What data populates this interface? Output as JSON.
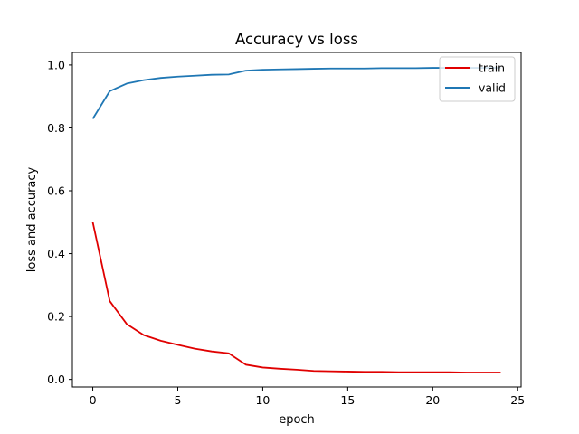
{
  "chart_data": {
    "type": "line",
    "title": "Accuracy vs loss",
    "xlabel": "epoch",
    "ylabel": "loss and accuracy",
    "xlim": [
      -1.2,
      25.2
    ],
    "ylim": [
      -0.024,
      1.04
    ],
    "xticks": [
      0,
      5,
      10,
      15,
      20,
      25
    ],
    "yticks": [
      0.0,
      0.2,
      0.4,
      0.6,
      0.8,
      1.0
    ],
    "ytick_labels": [
      "0.0",
      "0.2",
      "0.4",
      "0.6",
      "0.8",
      "1.0"
    ],
    "grid": false,
    "legend_position": "top-right",
    "x": [
      0,
      1,
      2,
      3,
      4,
      5,
      6,
      7,
      8,
      9,
      10,
      11,
      12,
      13,
      14,
      15,
      16,
      17,
      18,
      19,
      20,
      21,
      22,
      23,
      24
    ],
    "series": [
      {
        "name": "train",
        "color": "#e00000",
        "values": [
          0.5,
          0.249,
          0.176,
          0.141,
          0.123,
          0.11,
          0.098,
          0.089,
          0.083,
          0.047,
          0.038,
          0.034,
          0.031,
          0.027,
          0.026,
          0.025,
          0.024,
          0.024,
          0.023,
          0.023,
          0.023,
          0.023,
          0.022,
          0.022,
          0.022
        ]
      },
      {
        "name": "valid",
        "color": "#1f77b4",
        "values": [
          0.829,
          0.917,
          0.941,
          0.952,
          0.959,
          0.963,
          0.966,
          0.969,
          0.97,
          0.982,
          0.985,
          0.986,
          0.987,
          0.988,
          0.989,
          0.989,
          0.989,
          0.99,
          0.99,
          0.99,
          0.991,
          0.991,
          0.991,
          0.991,
          0.991
        ]
      }
    ]
  }
}
